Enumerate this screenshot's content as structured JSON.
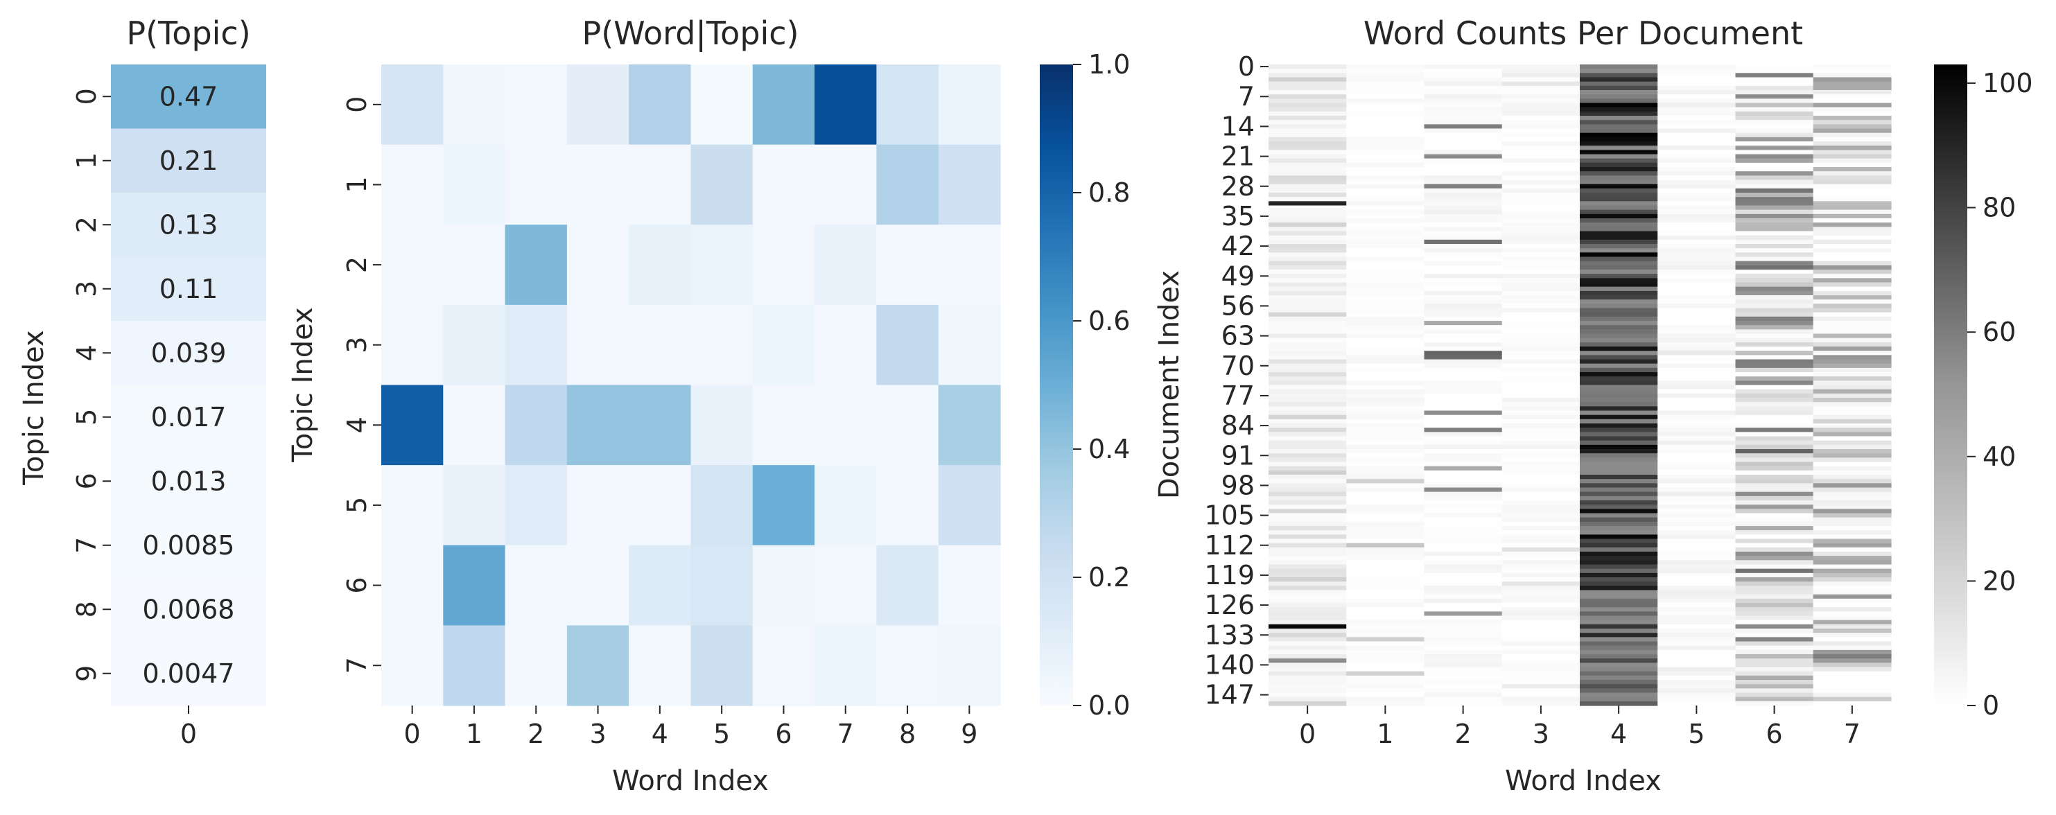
{
  "chart_data": [
    {
      "type": "heatmap",
      "title": "P(Topic)",
      "xlabel": "",
      "ylabel": "Topic Index",
      "x_ticks": [
        "0"
      ],
      "y_ticks": [
        "0",
        "1",
        "2",
        "3",
        "4",
        "5",
        "6",
        "7",
        "8",
        "9"
      ],
      "colormap": "Blues",
      "vmin": 0.0,
      "vmax": 1.0,
      "colorbar": "shared with P(Word|Topic)",
      "values": [
        [
          0.47
        ],
        [
          0.21
        ],
        [
          0.13
        ],
        [
          0.11
        ],
        [
          0.039
        ],
        [
          0.017
        ],
        [
          0.013
        ],
        [
          0.0085
        ],
        [
          0.0068
        ],
        [
          0.0047
        ]
      ],
      "annotations": [
        "0.47",
        "0.21",
        "0.13",
        "0.11",
        "0.039",
        "0.017",
        "0.013",
        "0.0085",
        "0.0068",
        "0.0047"
      ]
    },
    {
      "type": "heatmap",
      "title": "P(Word|Topic)",
      "xlabel": "Word Index",
      "ylabel": "Topic Index",
      "x_ticks": [
        "0",
        "1",
        "2",
        "3",
        "4",
        "5",
        "6",
        "7",
        "8",
        "9"
      ],
      "y_ticks": [
        "0",
        "1",
        "2",
        "3",
        "4",
        "5",
        "6",
        "7"
      ],
      "colormap": "Blues",
      "vmin": 0.0,
      "vmax": 1.0,
      "colorbar_ticks": [
        "0.0",
        "0.2",
        "0.4",
        "0.6",
        "0.8",
        "1.0"
      ],
      "colorbar_tick_values": [
        0.0,
        0.2,
        0.4,
        0.6,
        0.8,
        1.0
      ],
      "values": [
        [
          0.17,
          0.04,
          0.02,
          0.1,
          0.32,
          0.01,
          0.45,
          0.88,
          0.18,
          0.06
        ],
        [
          0.02,
          0.05,
          0.03,
          0.02,
          0.02,
          0.23,
          0.02,
          0.02,
          0.32,
          0.21
        ],
        [
          0.02,
          0.02,
          0.45,
          0.03,
          0.08,
          0.06,
          0.03,
          0.07,
          0.02,
          0.02
        ],
        [
          0.03,
          0.08,
          0.12,
          0.03,
          0.03,
          0.03,
          0.05,
          0.02,
          0.26,
          0.04
        ],
        [
          0.82,
          0.02,
          0.27,
          0.4,
          0.4,
          0.07,
          0.02,
          0.02,
          0.02,
          0.34
        ],
        [
          0.02,
          0.07,
          0.12,
          0.02,
          0.02,
          0.18,
          0.5,
          0.05,
          0.02,
          0.21
        ],
        [
          0.02,
          0.53,
          0.02,
          0.02,
          0.13,
          0.16,
          0.04,
          0.03,
          0.14,
          0.02
        ],
        [
          0.02,
          0.27,
          0.02,
          0.35,
          0.02,
          0.22,
          0.03,
          0.05,
          0.03,
          0.04
        ]
      ]
    },
    {
      "type": "heatmap",
      "title": "Word Counts Per Document",
      "xlabel": "Word Index",
      "ylabel": "Document Index",
      "x_ticks": [
        "0",
        "1",
        "2",
        "3",
        "4",
        "5",
        "6",
        "7"
      ],
      "y_ticks": [
        "0",
        "7",
        "14",
        "21",
        "28",
        "35",
        "42",
        "49",
        "56",
        "63",
        "70",
        "77",
        "84",
        "91",
        "98",
        "105",
        "112",
        "119",
        "126",
        "133",
        "140",
        "147"
      ],
      "n_rows": 150,
      "colormap": "Greys",
      "vmin": 0,
      "vmax": 103,
      "colorbar_ticks": [
        "0",
        "20",
        "40",
        "60",
        "80",
        "100"
      ],
      "colorbar_tick_values": [
        0,
        20,
        40,
        60,
        80,
        100
      ],
      "column_profiles": [
        {
          "base": [
            3,
            30
          ],
          "spikes": [
            [
              32,
              90
            ],
            [
              131,
              100
            ],
            [
              139,
              55
            ]
          ]
        },
        {
          "base": [
            0,
            8
          ],
          "spikes": [
            [
              97,
              30
            ],
            [
              112,
              35
            ],
            [
              134,
              30
            ],
            [
              142,
              30
            ]
          ]
        },
        {
          "base": [
            0,
            12
          ],
          "spikes": [
            [
              14,
              60
            ],
            [
              21,
              55
            ],
            [
              28,
              60
            ],
            [
              41,
              65
            ],
            [
              60,
              45
            ],
            [
              67,
              70
            ],
            [
              68,
              68
            ],
            [
              81,
              55
            ],
            [
              85,
              60
            ],
            [
              94,
              45
            ],
            [
              99,
              55
            ],
            [
              128,
              50
            ]
          ]
        },
        {
          "base": [
            0,
            10
          ],
          "spikes": [
            [
              2,
              14
            ],
            [
              4,
              18
            ],
            [
              113,
              20
            ],
            [
              121,
              18
            ],
            [
              145,
              15
            ]
          ]
        },
        {
          "base": [
            55,
            103
          ],
          "spikes": []
        },
        {
          "base": [
            0,
            14
          ],
          "spikes": [
            [
              67,
              16
            ],
            [
              77,
              12
            ],
            [
              141,
              14
            ]
          ]
        },
        {
          "base": [
            0,
            65
          ],
          "spikes": [
            [
              2,
              60
            ],
            [
              7,
              55
            ],
            [
              17,
              50
            ],
            [
              21,
              55
            ],
            [
              33,
              45
            ],
            [
              47,
              65
            ],
            [
              60,
              55
            ],
            [
              90,
              70
            ],
            [
              103,
              50
            ],
            [
              118,
              65
            ]
          ]
        },
        {
          "base": [
            0,
            55
          ],
          "spikes": [
            [
              3,
              50
            ],
            [
              5,
              45
            ],
            [
              33,
              40
            ],
            [
              50,
              45
            ],
            [
              63,
              40
            ],
            [
              138,
              60
            ]
          ]
        }
      ]
    }
  ]
}
